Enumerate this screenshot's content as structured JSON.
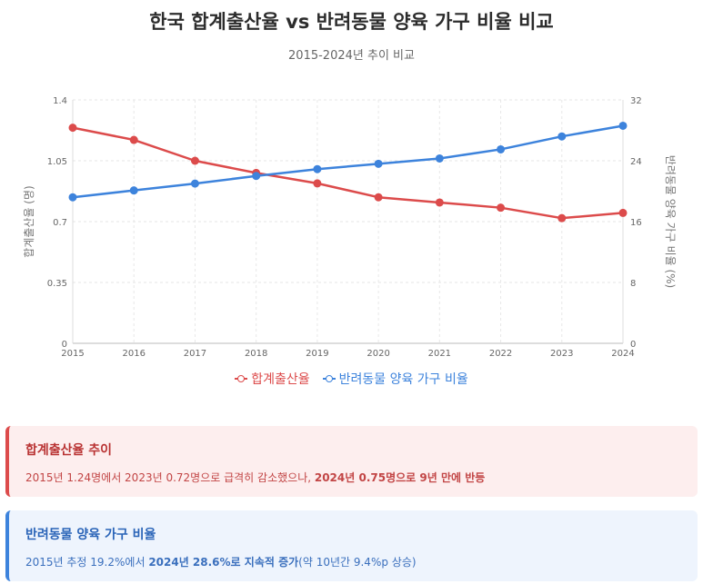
{
  "chart_data": {
    "type": "line",
    "title": "한국 합계출산율 vs 반려동물 양육 가구 비율 비교",
    "subtitle": "2015-2024년 추이 비교",
    "categories": [
      "2015",
      "2016",
      "2017",
      "2018",
      "2019",
      "2020",
      "2021",
      "2022",
      "2023",
      "2024"
    ],
    "series": [
      {
        "name": "합계출산율",
        "axis": "left",
        "color": "#dc4b4b",
        "values": [
          1.24,
          1.17,
          1.05,
          0.98,
          0.92,
          0.84,
          0.81,
          0.78,
          0.72,
          0.75
        ]
      },
      {
        "name": "반려동물 양육 가구 비율",
        "axis": "right",
        "color": "#3d83dc",
        "values": [
          19.2,
          20.1,
          21.0,
          22.0,
          22.9,
          23.6,
          24.3,
          25.5,
          27.2,
          28.6
        ]
      }
    ],
    "y_left": {
      "label": "합계출산율 (명)",
      "range": [
        0,
        1.4
      ],
      "ticks": [
        "0",
        "0.35",
        "0.7",
        "1.05",
        "1.4"
      ]
    },
    "y_right": {
      "label": "반려동물 양육 가구 비율 (%)",
      "range": [
        0,
        32
      ],
      "ticks": [
        "0",
        "8",
        "16",
        "24",
        "32"
      ]
    },
    "grid": true,
    "legend_position": "bottom"
  },
  "cards": {
    "birth": {
      "title": "합계출산율 추이",
      "text_pre": "2015년 1.24명에서 2023년 0.72명으로 급격히 감소했으나, ",
      "text_bold": "2024년 0.75명으로 9년 만에 반등"
    },
    "pet": {
      "title": "반려동물 양육 가구 비율",
      "text_pre": "2015년 추정 19.2%에서 ",
      "text_bold": "2024년 28.6%로 지속적 증가",
      "text_post": "(약 10년간 9.4%p 상승)"
    }
  }
}
